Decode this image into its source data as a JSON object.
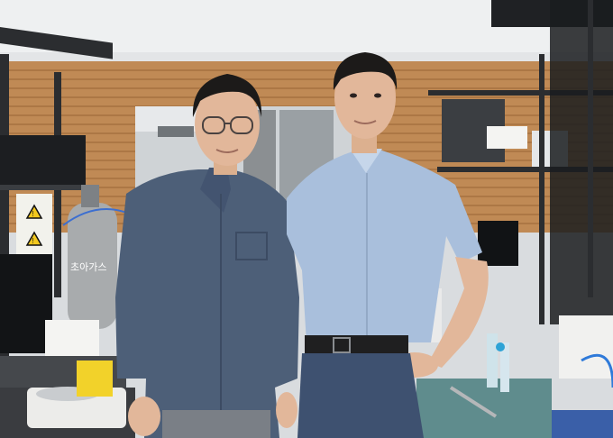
{
  "photo": {
    "signage": {
      "gas_label": "초아가스",
      "warning_symbol": "!"
    },
    "colors": {
      "ceiling": "#eef0f1",
      "wood_blinds": "#c08a55",
      "shelf_metal": "#2b2d30",
      "left_shirt": "#4d5f78",
      "right_shirt": "#a9bfdc",
      "jeans": "#3e5170",
      "skin": "#e2b79a",
      "hair": "#1c1a19",
      "bench_teal": "#5f8c8d"
    }
  }
}
